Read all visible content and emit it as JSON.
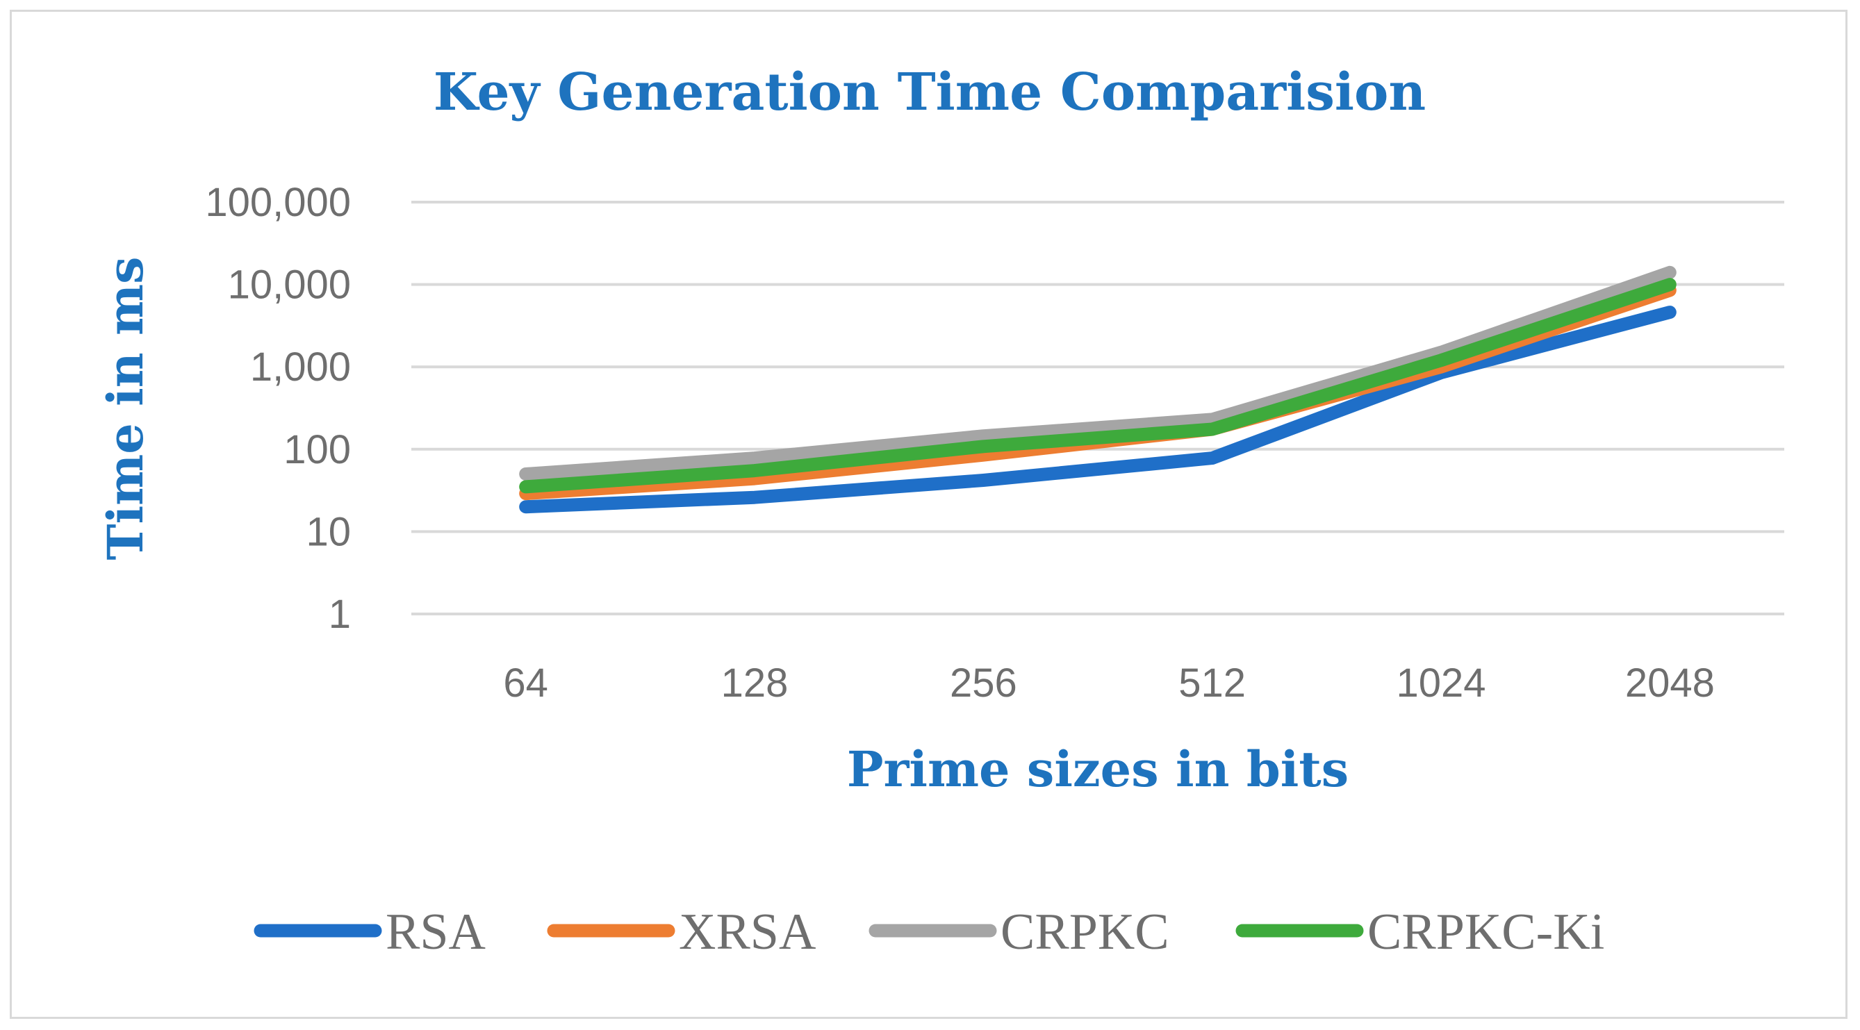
{
  "chart_data": {
    "type": "line",
    "title": "Key Generation Time Comparision",
    "xlabel": "Prime sizes in bits",
    "ylabel": "Time in ms",
    "yscale": "log",
    "ylim": [
      1,
      100000
    ],
    "yticks": [
      1,
      10,
      100,
      1000,
      10000,
      100000
    ],
    "ytick_labels": [
      "1",
      "10",
      "100",
      "1,000",
      "10,000",
      "100,000"
    ],
    "categories": [
      "64",
      "128",
      "256",
      "512",
      "1024",
      "2048"
    ],
    "grid": true,
    "legend_position": "bottom",
    "series": [
      {
        "name": "RSA",
        "color": "#1f6fc8",
        "values": [
          20,
          26,
          42,
          78,
          850,
          4600
        ]
      },
      {
        "name": "XRSA",
        "color": "#ed7d31",
        "values": [
          29,
          44,
          85,
          175,
          1000,
          8500
        ]
      },
      {
        "name": "CRPKC",
        "color": "#a5a5a5",
        "values": [
          50,
          78,
          145,
          230,
          1500,
          14000
        ]
      },
      {
        "name": "CRPKC-Ki",
        "color": "#3eaa3c",
        "values": [
          35,
          55,
          108,
          175,
          1200,
          10000
        ]
      }
    ]
  }
}
